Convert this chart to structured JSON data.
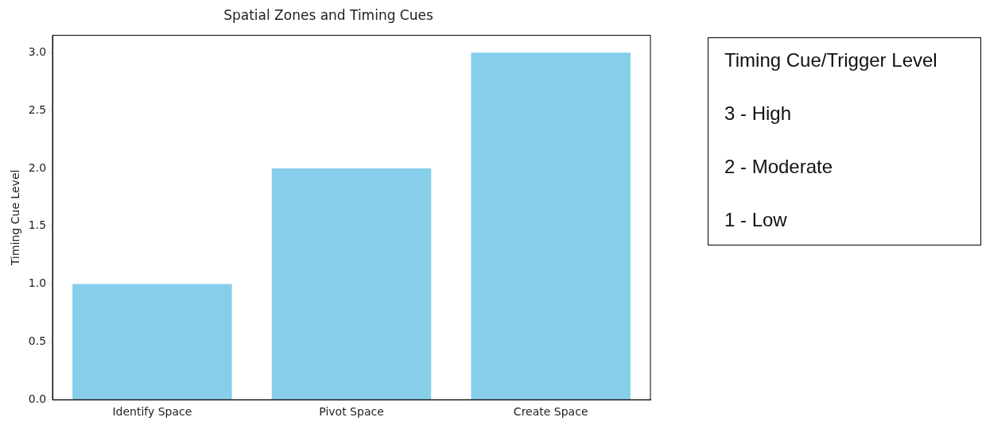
{
  "chart_data": {
    "type": "bar",
    "title": "Spatial Zones and Timing Cues",
    "ylabel": "Timing Cue Level",
    "categories": [
      "Identify Space",
      "Pivot Space",
      "Create Space"
    ],
    "values": [
      1,
      2,
      3
    ],
    "color": "#87ceeb",
    "ylim": [
      0,
      3.15
    ],
    "yticks": [
      {
        "value": 0,
        "label": "0.0"
      },
      {
        "value": 0.5,
        "label": "0.5"
      },
      {
        "value": 1,
        "label": "1.0"
      },
      {
        "value": 1.5,
        "label": "1.5"
      },
      {
        "value": 2,
        "label": "2.0"
      },
      {
        "value": 2.5,
        "label": "2.5"
      },
      {
        "value": 3,
        "label": "3.0"
      }
    ],
    "grid": false,
    "legend": false,
    "annotations": [
      "Timing Cue/Trigger Level",
      "3 - High",
      "2 - Moderate",
      "1 - Low"
    ]
  }
}
